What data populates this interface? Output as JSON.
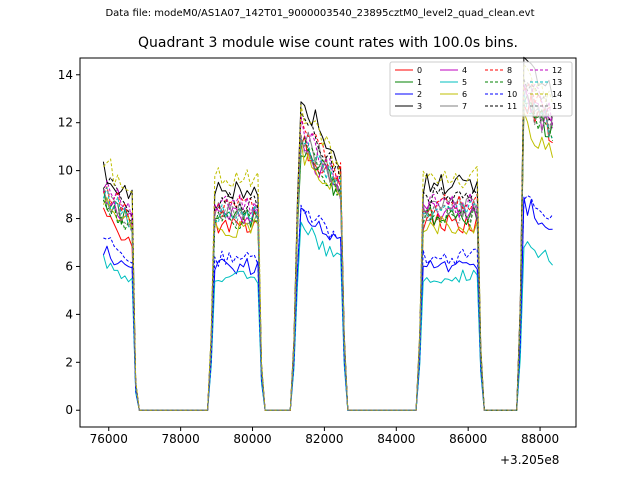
{
  "figure": {
    "suptitle": "Data file: modeM0/AS1A07_142T01_9000003540_23895cztM0_level2_quad_clean.evt",
    "title": "Quadrant 3 module wise count rates with 100.0s bins.",
    "x_offset_label": "+3.205e8"
  },
  "chart_data": {
    "type": "line",
    "title": "Quadrant 3 module wise count rates with 100.0s bins.",
    "xlabel": "",
    "ylabel": "",
    "x_offset": "+3.205e8",
    "xlim": [
      75200,
      89000
    ],
    "ylim": [
      -0.7,
      14.7
    ],
    "xticks": [
      76000,
      78000,
      80000,
      82000,
      84000,
      86000,
      88000
    ],
    "yticks": [
      0,
      2,
      4,
      6,
      8,
      10,
      12,
      14
    ],
    "xtick_labels": [
      "76000",
      "78000",
      "80000",
      "82000",
      "84000",
      "86000",
      "88000"
    ],
    "ytick_labels": [
      "0",
      "2",
      "4",
      "6",
      "8",
      "10",
      "12",
      "14"
    ],
    "grid": false,
    "legend_placement": "top-right",
    "legend_columns": 4,
    "segments": [
      {
        "on": [
          75850,
          76650
        ],
        "ramp_end": 76780
      },
      {
        "ramp_start": 78800,
        "on": [
          78950,
          80200
        ],
        "ramp_end": 80280
      },
      {
        "ramp_start": 81100,
        "on": [
          81300,
          82500
        ],
        "ramp_end": 82600
      },
      {
        "ramp_start": 84600,
        "on": [
          84750,
          86300
        ],
        "ramp_end": 86400
      },
      {
        "ramp_start": 87400,
        "on": [
          87550,
          88350
        ]
      }
    ],
    "gap_value": 0,
    "series": [
      {
        "name": "0",
        "color": "#ff0000",
        "dash": "solid",
        "levels": [
          7.5,
          7.7,
          10.1,
          7.8,
          12.1
        ]
      },
      {
        "name": "1",
        "color": "#008000",
        "dash": "solid",
        "levels": [
          8.2,
          8.0,
          10.0,
          8.1,
          12.0
        ]
      },
      {
        "name": "2",
        "color": "#0000ff",
        "dash": "solid",
        "levels": [
          6.2,
          6.0,
          7.6,
          6.0,
          8.0
        ]
      },
      {
        "name": "3",
        "color": "#000000",
        "dash": "solid",
        "levels": [
          9.3,
          9.3,
          11.6,
          9.4,
          13.5
        ]
      },
      {
        "name": "4",
        "color": "#bf00bf",
        "dash": "solid",
        "levels": [
          8.4,
          8.2,
          10.0,
          8.3,
          12.1
        ]
      },
      {
        "name": "5",
        "color": "#00bfbf",
        "dash": "solid",
        "levels": [
          5.7,
          5.5,
          6.9,
          5.6,
          6.5
        ]
      },
      {
        "name": "6",
        "color": "#bfbf00",
        "dash": "solid",
        "levels": [
          8.0,
          7.6,
          9.8,
          7.7,
          11.1
        ]
      },
      {
        "name": "7",
        "color": "#808080",
        "dash": "solid",
        "levels": [
          8.3,
          8.4,
          10.4,
          8.5,
          12.3
        ]
      },
      {
        "name": "8",
        "color": "#ff0000",
        "dash": "dashed",
        "levels": [
          8.6,
          8.5,
          10.8,
          8.6,
          12.6
        ]
      },
      {
        "name": "9",
        "color": "#008000",
        "dash": "dashed",
        "levels": [
          8.1,
          8.0,
          10.0,
          8.1,
          11.9
        ]
      },
      {
        "name": "10",
        "color": "#0000ff",
        "dash": "dashed",
        "levels": [
          6.6,
          6.3,
          7.8,
          6.4,
          8.3
        ]
      },
      {
        "name": "11",
        "color": "#000000",
        "dash": "dashed",
        "levels": [
          8.9,
          8.7,
          10.9,
          8.9,
          13.0
        ]
      },
      {
        "name": "12",
        "color": "#bf00bf",
        "dash": "dashed",
        "levels": [
          8.8,
          8.6,
          10.6,
          8.7,
          12.8
        ]
      },
      {
        "name": "13",
        "color": "#00bfbf",
        "dash": "dashed",
        "levels": [
          8.4,
          8.2,
          10.2,
          8.3,
          12.2
        ]
      },
      {
        "name": "14",
        "color": "#bfbf00",
        "dash": "dashed",
        "levels": [
          9.6,
          9.7,
          11.2,
          9.7,
          13.2
        ]
      },
      {
        "name": "15",
        "color": "#808080",
        "dash": "dashed",
        "levels": [
          8.2,
          8.1,
          10.1,
          8.2,
          12.0
        ]
      }
    ]
  }
}
